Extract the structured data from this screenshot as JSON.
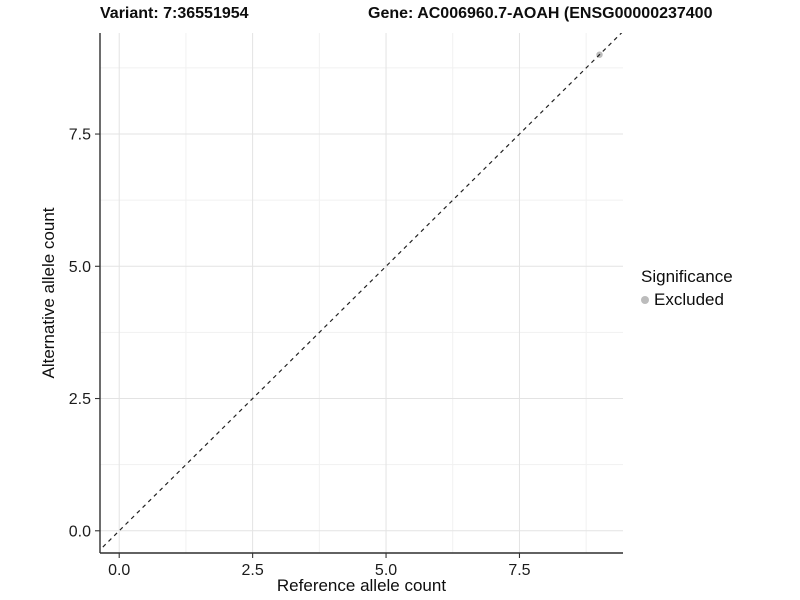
{
  "header": {
    "variant_title": "Variant: 7:36551954",
    "gene_title": "Gene: AC006960.7-AOAH (ENSG00000237400"
  },
  "chart_data": {
    "type": "scatter",
    "xlabel": "Reference allele count",
    "ylabel": "Alternative allele count",
    "xlim": [
      -0.36,
      9.44
    ],
    "ylim": [
      -0.42,
      9.41
    ],
    "x_ticks": {
      "values": [
        0,
        2.5,
        5,
        7.5
      ],
      "labels": [
        "0.0",
        "2.5",
        "5.0",
        "7.5"
      ]
    },
    "y_ticks": {
      "values": [
        0,
        2.5,
        5,
        7.5
      ],
      "labels": [
        "0.0",
        "2.5",
        "5.0",
        "7.5"
      ]
    },
    "minor_tick_step": 1.25,
    "grid": "major+minor",
    "points": [
      {
        "x": 9,
        "y": 9,
        "significance": "Excluded"
      }
    ],
    "identity_line": {
      "slope": 1,
      "intercept": 0,
      "style": "dashed"
    },
    "legend": {
      "position": "right",
      "title": "Significance",
      "entries": [
        {
          "label": "Excluded",
          "color": "#bcbcbc"
        }
      ]
    },
    "colors": {
      "point_excluded": "#bcbcbc",
      "grid_major": "#e3e3e3",
      "grid_minor": "#f1f1f1",
      "axis_line": "#2f2f2f",
      "tick": "#333333",
      "tick_label": "#1c1c1c",
      "identity_line": "#222222",
      "background": "#ffffff"
    }
  }
}
